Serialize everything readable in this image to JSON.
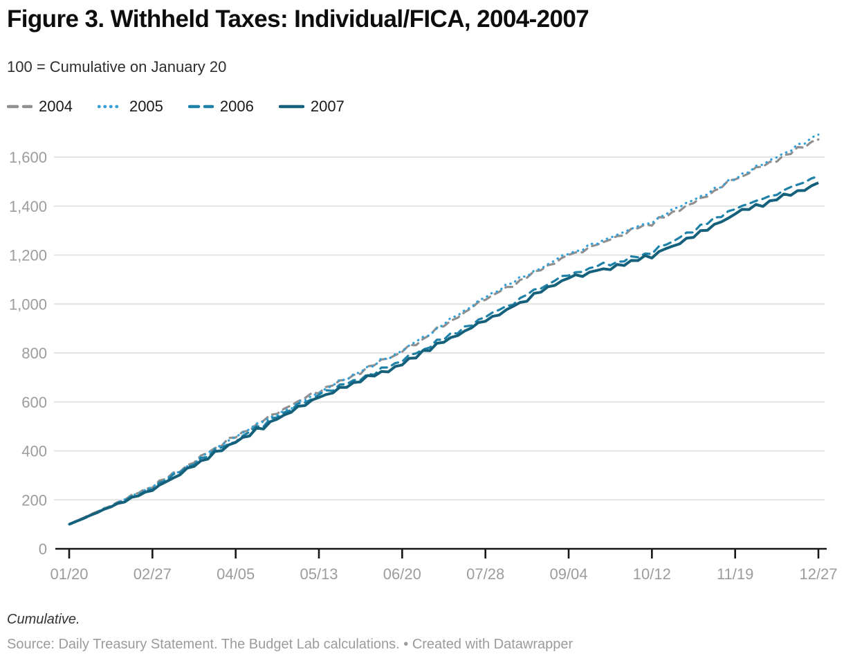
{
  "title": "Figure 3. Withheld Taxes: Individual/FICA, 2004-2007",
  "subtitle": "100 = Cumulative on January 20",
  "legend": [
    {
      "label": "2004",
      "color": "#8f8f8f",
      "style": "dashed"
    },
    {
      "label": "2005",
      "color": "#35a1d6",
      "style": "dotted"
    },
    {
      "label": "2006",
      "color": "#1d81a8",
      "style": "dashed"
    },
    {
      "label": "2007",
      "color": "#15607a",
      "style": "solid"
    }
  ],
  "chart_data": {
    "type": "line",
    "title": "Figure 3. Withheld Taxes: Individual/FICA, 2004-2007",
    "subtitle": "100 = Cumulative on January 20",
    "categories": [
      "01/20",
      "02/27",
      "04/05",
      "05/13",
      "06/20",
      "07/28",
      "09/04",
      "10/12",
      "11/19",
      "12/27"
    ],
    "ylim": [
      0,
      1600
    ],
    "y_ticks": [
      0,
      200,
      400,
      600,
      800,
      1000,
      1200,
      1400,
      1600
    ],
    "grid": "horizontal",
    "legend_position": "top-left",
    "series": [
      {
        "name": "2004",
        "color": "#8f8f8f",
        "style": "dashed",
        "values": [
          100,
          255,
          462,
          645,
          805,
          1020,
          1200,
          1330,
          1508,
          1672
        ]
      },
      {
        "name": "2005",
        "color": "#35a1d6",
        "style": "dotted",
        "values": [
          100,
          252,
          458,
          642,
          810,
          1028,
          1207,
          1338,
          1516,
          1692
        ]
      },
      {
        "name": "2006",
        "color": "#1d81a8",
        "style": "dashed",
        "values": [
          100,
          246,
          447,
          628,
          768,
          950,
          1122,
          1212,
          1387,
          1522
        ]
      },
      {
        "name": "2007",
        "color": "#15607a",
        "style": "solid",
        "values": [
          100,
          241,
          438,
          620,
          755,
          935,
          1105,
          1196,
          1366,
          1495
        ]
      }
    ]
  },
  "colors": {
    "grid": "#e3e3e3",
    "axis": "#161616",
    "axis_label": "#9c9c9c"
  },
  "footer": {
    "note": "Cumulative.",
    "source": "Source: Daily Treasury Statement. The Budget Lab calculations. • Created with Datawrapper"
  }
}
